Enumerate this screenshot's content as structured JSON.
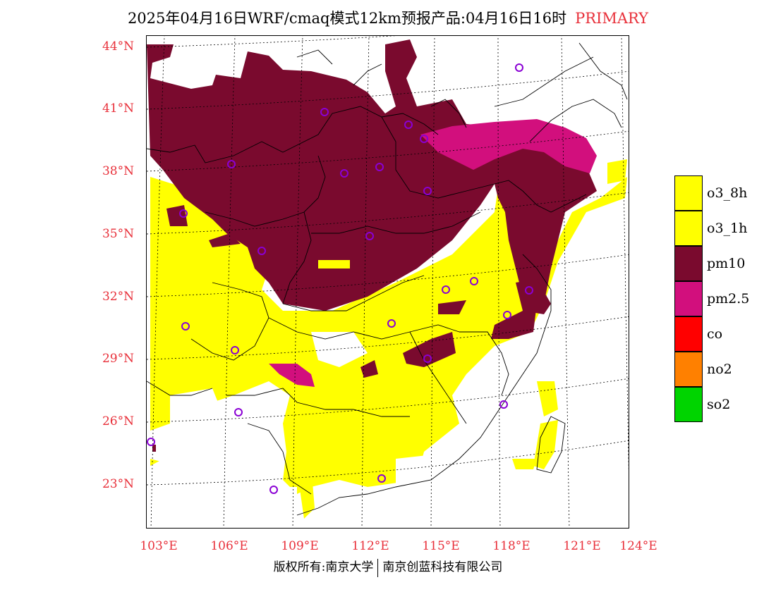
{
  "title": {
    "main": "2025年04月16日WRF/cmaq模式12km预报产品:04月16日16时",
    "tag": "PRIMARY"
  },
  "axes": {
    "lat_labels": [
      "44°N",
      "41°N",
      "38°N",
      "35°N",
      "32°N",
      "29°N",
      "26°N",
      "23°N"
    ],
    "lon_labels": [
      "103°E",
      "106°E",
      "109°E",
      "112°E",
      "115°E",
      "118°E",
      "121°E",
      "124°E"
    ]
  },
  "legend": [
    {
      "label": "o3_8h",
      "color": "#ffff00"
    },
    {
      "label": "o3_1h",
      "color": "#ffff00"
    },
    {
      "label": "pm10",
      "color": "#7a0a2e"
    },
    {
      "label": "pm2.5",
      "color": "#d20f7d"
    },
    {
      "label": "co",
      "color": "#ff0000"
    },
    {
      "label": "no2",
      "color": "#ff8000"
    },
    {
      "label": "so2",
      "color": "#00d400"
    }
  ],
  "credit": {
    "left": "版权所有:南京大学",
    "right": "南京创蓝科技有限公司"
  },
  "colors": {
    "pm10": "#7a0a2e",
    "pm25": "#d20f7d",
    "o3": "#ffff00",
    "station": "#8a00d4",
    "axis_label": "#e8303a"
  }
}
